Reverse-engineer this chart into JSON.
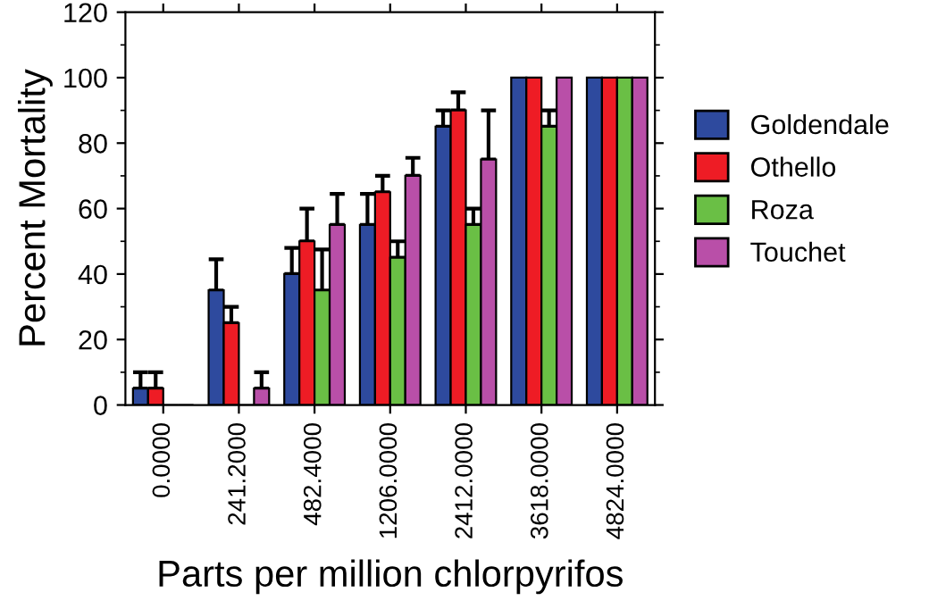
{
  "chart_data": {
    "type": "bar",
    "xlabel": "Parts per million chlorpyrifos",
    "ylabel": "Percent Mortality",
    "categories": [
      "0.0000",
      "241.2000",
      "482.4000",
      "1206.0000",
      "2412.0000",
      "3618.0000",
      "4824.0000"
    ],
    "series": [
      {
        "name": "Goldendale",
        "color": "#2e4a9e",
        "values": [
          5,
          35,
          40,
          55,
          85,
          100,
          100
        ],
        "errors": [
          [
            5,
            10
          ],
          [
            35,
            44.5
          ],
          [
            40,
            48
          ],
          [
            55,
            64.5
          ],
          [
            85,
            90
          ],
          null,
          null
        ]
      },
      {
        "name": "Othello",
        "color": "#ee1c25",
        "values": [
          5,
          25,
          50,
          65,
          90,
          100,
          100
        ],
        "errors": [
          [
            5,
            10
          ],
          [
            25,
            30
          ],
          [
            50,
            60
          ],
          [
            65,
            70
          ],
          [
            90,
            95.5
          ],
          null,
          null
        ]
      },
      {
        "name": "Roza",
        "color": "#6abf45",
        "values": [
          0,
          0,
          35,
          45,
          55,
          85,
          100
        ],
        "errors": [
          null,
          null,
          [
            35,
            47.5
          ],
          [
            45,
            50
          ],
          [
            55,
            60
          ],
          [
            85,
            90
          ],
          null
        ]
      },
      {
        "name": "Touchet",
        "color": "#b94fa8",
        "values": [
          0,
          5,
          55,
          70,
          75,
          100,
          100
        ],
        "errors": [
          null,
          [
            5,
            10
          ],
          [
            55,
            64.5
          ],
          [
            70,
            75.5
          ],
          [
            75,
            90
          ],
          null,
          null
        ]
      }
    ],
    "ylim": [
      0,
      120
    ],
    "yticks": [
      0,
      20,
      40,
      60,
      80,
      100,
      120
    ],
    "grid": false,
    "legend": "right"
  }
}
